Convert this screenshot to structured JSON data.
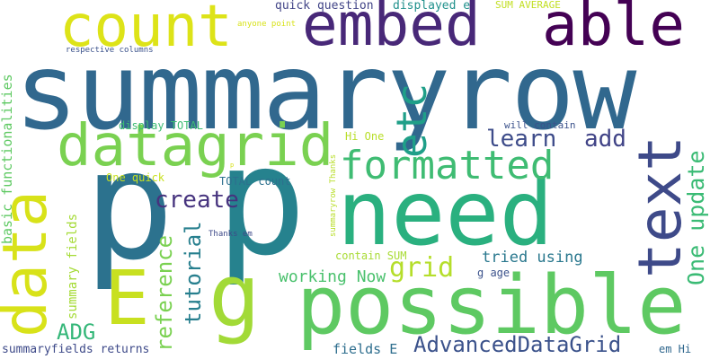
{
  "words": [
    {
      "text": "summaryrow",
      "color": "#31688e"
    },
    {
      "text": "p",
      "color": "#2c728e"
    },
    {
      "text": "p",
      "color": "#26828e"
    },
    {
      "text": "need",
      "color": "#2ab07f"
    },
    {
      "text": "possible",
      "color": "#5ec962"
    },
    {
      "text": "embed",
      "color": "#482878"
    },
    {
      "text": "able",
      "color": "#440154"
    },
    {
      "text": "count",
      "color": "#dde318"
    },
    {
      "text": "datagrid",
      "color": "#7ad151"
    },
    {
      "text": "formatted",
      "color": "#3fbc73"
    },
    {
      "text": "text",
      "color": "#3e4a89"
    },
    {
      "text": "data",
      "color": "#d8e219"
    },
    {
      "text": "E",
      "color": "#c8e020"
    },
    {
      "text": "g",
      "color": "#a2da37"
    },
    {
      "text": "etc",
      "color": "#1f9f88"
    },
    {
      "text": "learn",
      "color": "#3e4c8a"
    },
    {
      "text": "add",
      "color": "#414487"
    },
    {
      "text": "create",
      "color": "#46337e"
    },
    {
      "text": "One update",
      "color": "#3bbb75"
    },
    {
      "text": "grid",
      "color": "#b5de2b"
    },
    {
      "text": "tutorial",
      "color": "#277f8e"
    },
    {
      "text": "reference",
      "color": "#7ad151"
    },
    {
      "text": "AdvancedDataGrid",
      "color": "#3b528b"
    },
    {
      "text": "ADG",
      "color": "#35b779"
    },
    {
      "text": "working Now",
      "color": "#4ac16d"
    },
    {
      "text": "tried using",
      "color": "#2a788e"
    },
    {
      "text": "basic functionalities",
      "color": "#5ec962"
    },
    {
      "text": "summary fields",
      "color": "#a5db36"
    },
    {
      "text": "summaryfields returns",
      "color": "#3e4a89"
    },
    {
      "text": "fields E",
      "color": "#2e6e8e"
    },
    {
      "text": "quick question",
      "color": "#414487"
    },
    {
      "text": "displayed e",
      "color": "#21918c"
    },
    {
      "text": "SUM AVERAGE",
      "color": "#c2df23"
    },
    {
      "text": "anyone point",
      "color": "#d8e219"
    },
    {
      "text": "respective columns",
      "color": "#3b528b"
    },
    {
      "text": "display TOTAL",
      "color": "#3dbc74"
    },
    {
      "text": "will contain",
      "color": "#3b528b"
    },
    {
      "text": "Hi One",
      "color": "#b8de29"
    },
    {
      "text": "One quick",
      "color": "#c8e020"
    },
    {
      "text": "TOTAL count",
      "color": "#2d708e"
    },
    {
      "text": "contain SUM",
      "color": "#a8db34"
    },
    {
      "text": "g age",
      "color": "#3b528b"
    },
    {
      "text": "em Hi",
      "color": "#31688e"
    },
    {
      "text": "Thanks em",
      "color": "#3e4a89"
    },
    {
      "text": "summaryrow Thanks",
      "color": "#b8de29"
    },
    {
      "text": "p",
      "color": "#d8e219"
    }
  ]
}
